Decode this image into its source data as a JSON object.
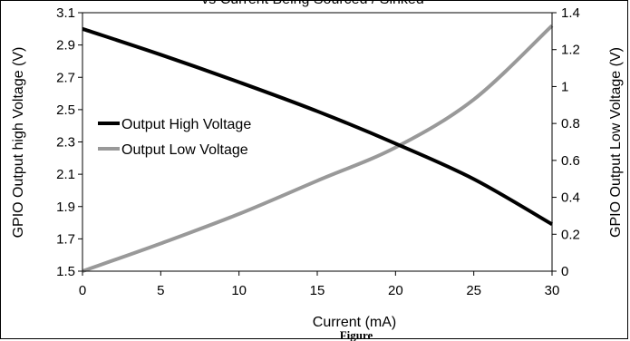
{
  "chart_data": {
    "type": "line",
    "title": "vs Current Being Sourced / Sinked",
    "xlabel": "Current (mA)",
    "ylabel_left": "GPIO Output high Voltage (V)",
    "ylabel_right": "GPIO Output Low Voltage (V)",
    "figure_caption": "Figure",
    "x_ticks": [
      "0",
      "5",
      "10",
      "15",
      "20",
      "25",
      "30"
    ],
    "y_left_ticks": [
      "1.5",
      "1.7",
      "1.9",
      "2.1",
      "2.3",
      "2.5",
      "2.7",
      "2.9",
      "3.1"
    ],
    "y_right_ticks": [
      "0",
      "0.2",
      "0.4",
      "0.6",
      "0.8",
      "1",
      "1.2",
      "1.4"
    ],
    "xlim": [
      0,
      30
    ],
    "ylim_left": [
      1.5,
      3.1
    ],
    "ylim_right": [
      0,
      1.4
    ],
    "grid": false,
    "legend_position": "left-center",
    "series": [
      {
        "name": "Output High Voltage",
        "axis": "left",
        "color": "#000000",
        "x": [
          0,
          5,
          10,
          15,
          20,
          25,
          30
        ],
        "values": [
          3.0,
          2.84,
          2.67,
          2.49,
          2.29,
          2.07,
          1.79
        ]
      },
      {
        "name": "Output Low Voltage",
        "axis": "right",
        "color": "#999999",
        "x": [
          0,
          5,
          10,
          15,
          20,
          25,
          30
        ],
        "values": [
          0,
          0.15,
          0.31,
          0.49,
          0.67,
          0.93,
          1.33
        ]
      }
    ]
  }
}
